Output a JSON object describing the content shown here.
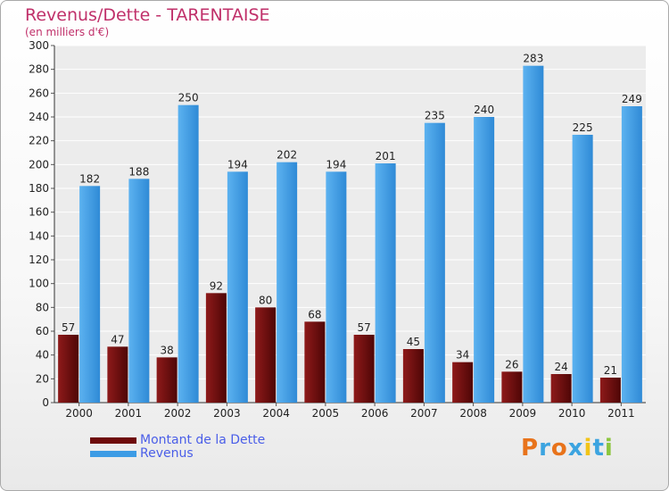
{
  "chart_data": {
    "type": "bar",
    "title": "Revenus/Dette - TARENTAISE",
    "subtitle": "(en milliers d'€)",
    "categories": [
      "2000",
      "2001",
      "2002",
      "2003",
      "2004",
      "2005",
      "2006",
      "2007",
      "2008",
      "2009",
      "2010",
      "2011"
    ],
    "series": [
      {
        "name": "Montant de la Dette",
        "color": "#7a0c0c",
        "values": [
          57,
          47,
          38,
          92,
          80,
          68,
          57,
          45,
          34,
          26,
          24,
          21
        ]
      },
      {
        "name": "Revenus",
        "color": "#3d9ce5",
        "values": [
          182,
          188,
          250,
          194,
          202,
          194,
          201,
          235,
          240,
          283,
          225,
          249
        ]
      }
    ],
    "ylim": [
      0,
      300
    ],
    "yticks": [
      0,
      20,
      40,
      60,
      80,
      100,
      120,
      140,
      160,
      180,
      200,
      220,
      240,
      260,
      280,
      300
    ],
    "grid": true,
    "legend": "bottom-left"
  },
  "logo": {
    "text": "Proxiti",
    "letter_colors": [
      "#e8731b",
      "#3ca4e0",
      "#e8731b",
      "#3ca4e0",
      "#f2c417",
      "#3ca4e0",
      "#8cc63e"
    ]
  }
}
